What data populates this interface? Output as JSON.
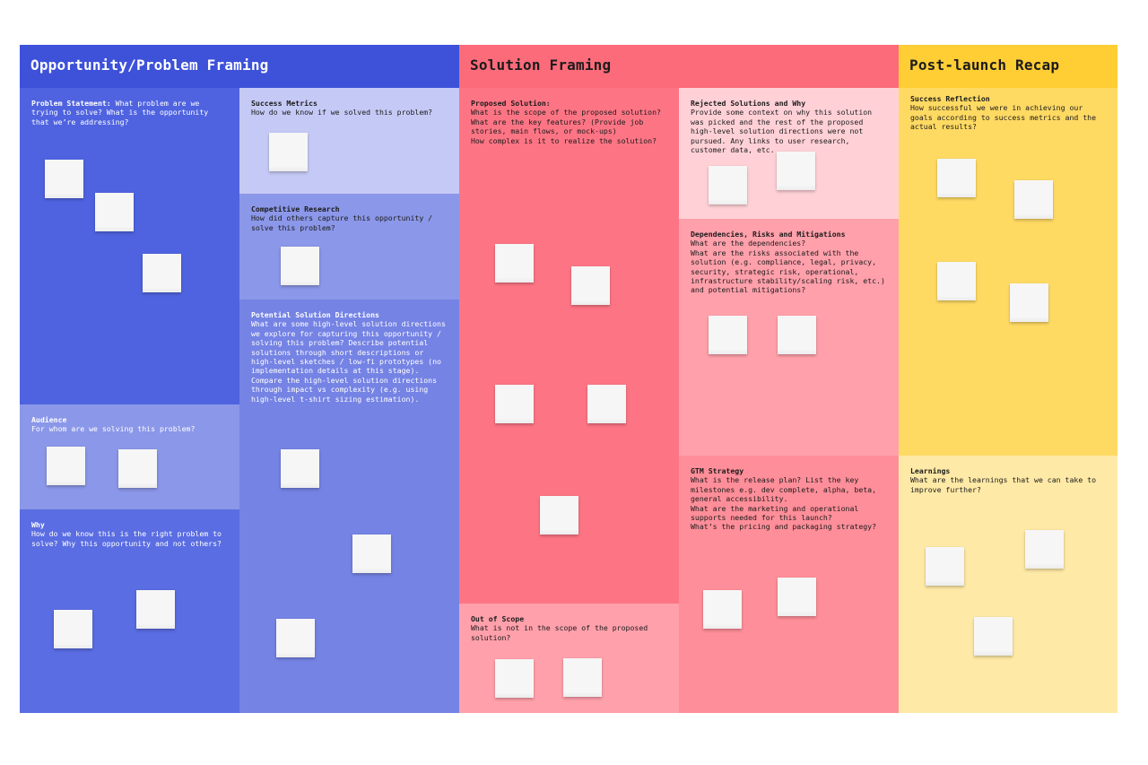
{
  "columns": {
    "opportunity": "Opportunity/Problem Framing",
    "solution": "Solution Framing",
    "recap": "Post-launch Recap"
  },
  "sections": {
    "problem_statement": {
      "title": "Problem Statement:",
      "description": " What problem are we trying to solve? What is the opportunity that we’re addressing?"
    },
    "audience": {
      "title": "Audience",
      "description": "For whom are we solving this problem?"
    },
    "why": {
      "title": "Why",
      "description": "How do we know this is the right problem to solve? Why this opportunity and not others?"
    },
    "success_metrics": {
      "title": "Success Metrics",
      "description": "How do we know if we solved this problem?"
    },
    "competitive_research": {
      "title": "Competitive Research",
      "description": "How did others capture this opportunity / solve this problem?"
    },
    "potential_solution_directions": {
      "title": "Potential Solution Directions",
      "description": "What are some high-level solution directions we explore for capturing this opportunity / solving this problem? Describe potential solutions through short descriptions or high-level sketches / low-fi prototypes (no implementation details at this stage). Compare the high-level solution directions through impact vs complexity (e.g. using high-level t-shirt sizing estimation)."
    },
    "proposed_solution": {
      "title": "Proposed Solution:",
      "description": "What is the scope of the proposed solution?\nWhat are the key features? (Provide job stories, main flows, or mock-ups)\nHow complex is it to realize the solution?"
    },
    "out_of_scope": {
      "title": "Out of Scope",
      "description": "What is not in the scope of the proposed solution?"
    },
    "rejected_solutions": {
      "title": "Rejected Solutions and Why",
      "description": "Provide some context on why this solution was picked and the rest of the proposed high-level solution directions were not pursued. Any links to user research, customer data, etc."
    },
    "dependencies": {
      "title": "Dependencies, Risks and Mitigations",
      "description": "What are the dependencies?\nWhat are the risks associated with the solution (e.g. compliance, legal, privacy, security, strategic risk, operational, infrastructure stability/scaling risk, etc.) and potential mitigations?"
    },
    "gtm_strategy": {
      "title": "GTM Strategy",
      "description": "What is the release plan? List the key milestones e.g. dev complete, alpha, beta, general accessibility.\nWhat are the marketing and operational supports needed for this launch?\nWhat’s the pricing and packaging strategy?"
    },
    "success_reflection": {
      "title": "Success Reflection",
      "description": "How successful we were in achieving our goals according to success metrics and the actual results?"
    },
    "learnings": {
      "title": "Learnings",
      "description": "What are the learnings that we can take to improve further?"
    }
  },
  "colors": {
    "header_blue": "#3d51d9",
    "blue_main": "#4f63e0",
    "blue_light": "#8b97e8",
    "blue_pale": "#c5c9f5",
    "blue_mid": "#7583e4",
    "header_red": "#fc6b7a",
    "red_main": "#fd7585",
    "red_light": "#ffa0ab",
    "pink_pale": "#ffd1d7",
    "red_mid": "#fe8e99",
    "header_yellow": "#ffcd34",
    "yellow_main": "#ffda63",
    "yellow_light": "#ffe9a6",
    "sticky_note": "#f6f6f6"
  }
}
